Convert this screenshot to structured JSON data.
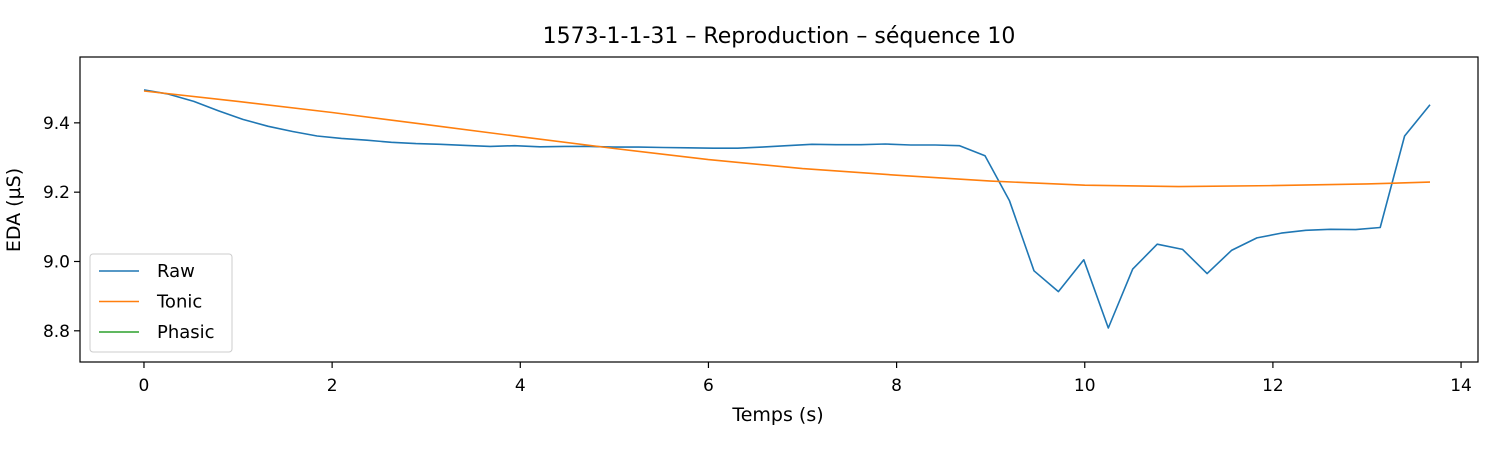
{
  "chart_data": {
    "type": "line",
    "title": "1573-1-1-31 – Reproduction – séquence 10",
    "xlabel": "Temps (s)",
    "ylabel": "EDA (µS)",
    "xlim": [
      -0.68,
      14.18
    ],
    "ylim": [
      8.71,
      9.59
    ],
    "xticks": [
      0,
      2,
      4,
      6,
      8,
      10,
      12,
      14
    ],
    "xtick_labels": [
      "0",
      "2",
      "4",
      "6",
      "8",
      "10",
      "12",
      "14"
    ],
    "yticks": [
      8.8,
      9.0,
      9.2,
      9.4
    ],
    "ytick_labels": [
      "8.8",
      "9.0",
      "9.2",
      "9.4"
    ],
    "grid": false,
    "legend": {
      "position": "lower-left",
      "entries": [
        "Raw",
        "Tonic",
        "Phasic"
      ]
    },
    "series": [
      {
        "name": "Raw",
        "color": "#1f77b4",
        "x": [
          0,
          0.26,
          0.53,
          0.79,
          1.05,
          1.32,
          1.58,
          1.84,
          2.1,
          2.37,
          2.63,
          2.89,
          3.15,
          3.42,
          3.68,
          3.94,
          4.21,
          4.47,
          4.73,
          4.99,
          5.26,
          5.52,
          5.78,
          6.05,
          6.31,
          6.57,
          6.83,
          7.1,
          7.36,
          7.62,
          7.88,
          8.15,
          8.41,
          8.67,
          8.94,
          9.2,
          9.46,
          9.72,
          9.99,
          10.25,
          10.51,
          10.77,
          11.04,
          11.3,
          11.56,
          11.83,
          12.09,
          12.35,
          12.61,
          12.88,
          13.14,
          13.4,
          13.67
        ],
        "y": [
          9.495,
          9.483,
          9.462,
          9.435,
          9.41,
          9.39,
          9.375,
          9.362,
          9.355,
          9.35,
          9.344,
          9.34,
          9.338,
          9.335,
          9.332,
          9.334,
          9.331,
          9.332,
          9.332,
          9.33,
          9.33,
          9.329,
          9.328,
          9.327,
          9.327,
          9.33,
          9.334,
          9.338,
          9.337,
          9.337,
          9.339,
          9.336,
          9.336,
          9.334,
          9.305,
          9.175,
          8.973,
          8.913,
          9.005,
          8.808,
          8.978,
          9.05,
          9.035,
          8.965,
          9.032,
          9.068,
          9.082,
          9.09,
          9.093,
          9.092,
          9.098,
          9.362,
          9.452
        ]
      },
      {
        "name": "Tonic",
        "color": "#ff7f0e",
        "x": [
          0,
          1,
          2,
          3,
          4,
          5,
          6,
          7,
          8,
          9,
          10,
          11,
          12,
          13,
          13.67
        ],
        "y": [
          9.492,
          9.462,
          9.43,
          9.395,
          9.36,
          9.326,
          9.294,
          9.268,
          9.249,
          9.232,
          9.22,
          9.216,
          9.219,
          9.224,
          9.229
        ]
      },
      {
        "name": "Phasic",
        "color": "#2ca02c",
        "x": [],
        "y": []
      }
    ]
  }
}
